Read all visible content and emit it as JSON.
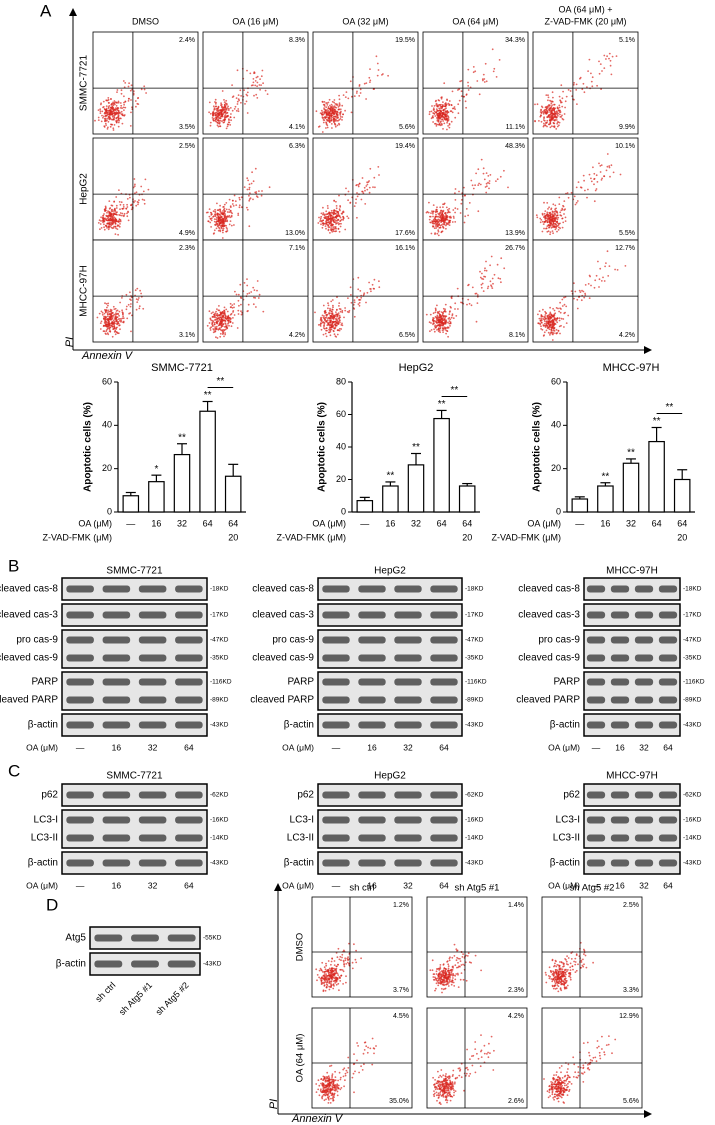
{
  "panel_labels": [
    "A",
    "B",
    "C",
    "D"
  ],
  "flow_a": {
    "columns": [
      [
        "DMSO"
      ],
      [
        "OA (16 μM)"
      ],
      [
        "OA (32 μM)"
      ],
      [
        "OA (64 μM)"
      ],
      [
        "OA (64 μM) +",
        "Z-VAD-FMK (20 μM)"
      ]
    ],
    "rows": [
      {
        "label": "SMMC-7721",
        "upper_right": [
          "2.4%",
          "8.3%",
          "19.5%",
          "34.3%",
          "5.1%"
        ],
        "lower_right": [
          "3.5%",
          "4.1%",
          "5.6%",
          "11.1%",
          "9.9%"
        ]
      },
      {
        "label": "HepG2",
        "upper_right": [
          "2.5%",
          "6.3%",
          "19.4%",
          "48.3%",
          "10.1%"
        ],
        "lower_right": [
          "4.9%",
          "13.0%",
          "17.6%",
          "13.9%",
          "5.5%"
        ]
      },
      {
        "label": "MHCC-97H",
        "upper_right": [
          "2.3%",
          "7.1%",
          "16.1%",
          "26.7%",
          "12.7%"
        ],
        "lower_right": [
          "3.1%",
          "4.2%",
          "6.5%",
          "8.1%",
          "4.2%"
        ]
      }
    ],
    "y_axis": "PI",
    "x_axis": "Annexin V"
  },
  "chart_data": [
    {
      "type": "bar",
      "title": "SMMC-7721",
      "ylabel": "Apoptotic cells (%)",
      "color": "#ffffff",
      "categories": [
        "—",
        "16",
        "32",
        "64",
        "64"
      ],
      "category_label": "OA (μM)",
      "zvad_label": "Z-VAD-FMK (μM)",
      "zvad_values": [
        null,
        null,
        null,
        null,
        "20"
      ],
      "values": [
        7.5,
        14,
        26.5,
        46.5,
        16.5
      ],
      "errors": [
        1.5,
        3,
        5,
        4.5,
        5.5
      ],
      "significance": [
        null,
        "*",
        "**",
        "**",
        null
      ],
      "bracket_label": "**",
      "ylim": [
        0,
        60
      ],
      "yticks": [
        0,
        20,
        40,
        60
      ]
    },
    {
      "type": "bar",
      "title": "HepG2",
      "ylabel": "Apoptotic cells (%)",
      "color": "#ffffff",
      "categories": [
        "—",
        "16",
        "32",
        "64",
        "64"
      ],
      "category_label": "OA (μM)",
      "zvad_label": "Z-VAD-FMK (μM)",
      "zvad_values": [
        null,
        null,
        null,
        null,
        "20"
      ],
      "values": [
        7,
        16,
        29,
        57.5,
        16
      ],
      "errors": [
        2,
        2.5,
        7,
        5,
        1.5
      ],
      "significance": [
        null,
        "**",
        "**",
        "**",
        null
      ],
      "bracket_label": "**",
      "ylim": [
        0,
        80
      ],
      "yticks": [
        0,
        20,
        40,
        60,
        80
      ]
    },
    {
      "type": "bar",
      "title": "MHCC-97H",
      "ylabel": "Apoptotic cells (%)",
      "color": "#ffffff",
      "categories": [
        "—",
        "16",
        "32",
        "64",
        "64"
      ],
      "category_label": "OA (μM)",
      "zvad_label": "Z-VAD-FMK (μM)",
      "zvad_values": [
        null,
        null,
        null,
        null,
        "20"
      ],
      "values": [
        6,
        12,
        22.5,
        32.5,
        15
      ],
      "errors": [
        1,
        1.5,
        2,
        6.5,
        4.5
      ],
      "significance": [
        null,
        "**",
        "**",
        "**",
        null
      ],
      "bracket_label": "**",
      "ylim": [
        0,
        60
      ],
      "yticks": [
        0,
        20,
        40,
        60
      ]
    }
  ],
  "blots_b": {
    "x_label": "OA (μM)",
    "lanes": [
      "—",
      "16",
      "32",
      "64"
    ],
    "groups": [
      {
        "title": "SMMC-7721",
        "rows": [
          {
            "labels": [
              "cleaved cas-8"
            ],
            "sizes": [
              "-18KD"
            ]
          },
          {
            "labels": [
              "cleaved cas-3"
            ],
            "sizes": [
              "-17KD"
            ]
          },
          {
            "labels": [
              "pro cas-9",
              "cleaved cas-9"
            ],
            "sizes": [
              "-47KD",
              "-35KD"
            ]
          },
          {
            "labels": [
              "PARP",
              "cleaved PARP"
            ],
            "sizes": [
              "-116KD",
              "-89KD"
            ]
          },
          {
            "labels": [
              "β-actin"
            ],
            "sizes": [
              "-43KD"
            ]
          }
        ]
      },
      {
        "title": "HepG2",
        "rows": [
          {
            "labels": [
              "cleaved cas-8"
            ],
            "sizes": [
              "-18KD"
            ]
          },
          {
            "labels": [
              "cleaved cas-3"
            ],
            "sizes": [
              "-17KD"
            ]
          },
          {
            "labels": [
              "pro cas-9",
              "cleaved cas-9"
            ],
            "sizes": [
              "-47KD",
              "-35KD"
            ]
          },
          {
            "labels": [
              "PARP",
              "cleaved PARP"
            ],
            "sizes": [
              "-116KD",
              "-89KD"
            ]
          },
          {
            "labels": [
              "β-actin"
            ],
            "sizes": [
              "-43KD"
            ]
          }
        ]
      },
      {
        "title": "MHCC-97H",
        "rows": [
          {
            "labels": [
              "cleaved cas-8"
            ],
            "sizes": [
              "-18KD"
            ]
          },
          {
            "labels": [
              "cleaved cas-3"
            ],
            "sizes": [
              "-17KD"
            ]
          },
          {
            "labels": [
              "pro cas-9",
              "cleaved cas-9"
            ],
            "sizes": [
              "-47KD",
              "-35KD"
            ]
          },
          {
            "labels": [
              "PARP",
              "cleaved PARP"
            ],
            "sizes": [
              "-116KD",
              "-89KD"
            ]
          },
          {
            "labels": [
              "β-actin"
            ],
            "sizes": [
              "-43KD"
            ]
          }
        ]
      }
    ]
  },
  "blots_c": {
    "x_label": "OA (μM)",
    "lanes": [
      "—",
      "16",
      "32",
      "64"
    ],
    "groups": [
      {
        "title": "SMMC-7721",
        "rows": [
          {
            "labels": [
              "p62"
            ],
            "sizes": [
              "-62KD"
            ]
          },
          {
            "labels": [
              "LC3-I",
              "LC3-II"
            ],
            "sizes": [
              "-16KD",
              "-14KD"
            ]
          },
          {
            "labels": [
              "β-actin"
            ],
            "sizes": [
              "-43KD"
            ]
          }
        ]
      },
      {
        "title": "HepG2",
        "rows": [
          {
            "labels": [
              "p62"
            ],
            "sizes": [
              "-62KD"
            ]
          },
          {
            "labels": [
              "LC3-I",
              "LC3-II"
            ],
            "sizes": [
              "-16KD",
              "-14KD"
            ]
          },
          {
            "labels": [
              "β-actin"
            ],
            "sizes": [
              "-43KD"
            ]
          }
        ]
      },
      {
        "title": "MHCC-97H",
        "rows": [
          {
            "labels": [
              "p62"
            ],
            "sizes": [
              "-62KD"
            ]
          },
          {
            "labels": [
              "LC3-I",
              "LC3-II"
            ],
            "sizes": [
              "-16KD",
              "-14KD"
            ]
          },
          {
            "labels": [
              "β-actin"
            ],
            "sizes": [
              "-43KD"
            ]
          }
        ]
      }
    ]
  },
  "blot_d": {
    "lanes": [
      "sh ctrl",
      "sh Atg5 #1",
      "sh Atg5 #2"
    ],
    "rows": [
      {
        "labels": [
          "Atg5"
        ],
        "sizes": [
          "-55KD"
        ]
      },
      {
        "labels": [
          "β-actin"
        ],
        "sizes": [
          "-43KD"
        ]
      }
    ]
  },
  "flow_d": {
    "columns": [
      "sh ctrl",
      "sh Atg5 #1",
      "sh Atg5 #2"
    ],
    "rows": [
      {
        "label": "DMSO",
        "upper_right": [
          "1.2%",
          "1.4%",
          "2.5%"
        ],
        "lower_right": [
          "3.7%",
          "2.3%",
          "3.3%"
        ]
      },
      {
        "label": "OA (64 μM)",
        "upper_right": [
          "4.5%",
          "4.2%",
          "12.9%"
        ],
        "lower_right": [
          "35.0%",
          "2.6%",
          "5.6%"
        ]
      }
    ],
    "y_axis": "PI",
    "x_axis": "Annexin V"
  }
}
